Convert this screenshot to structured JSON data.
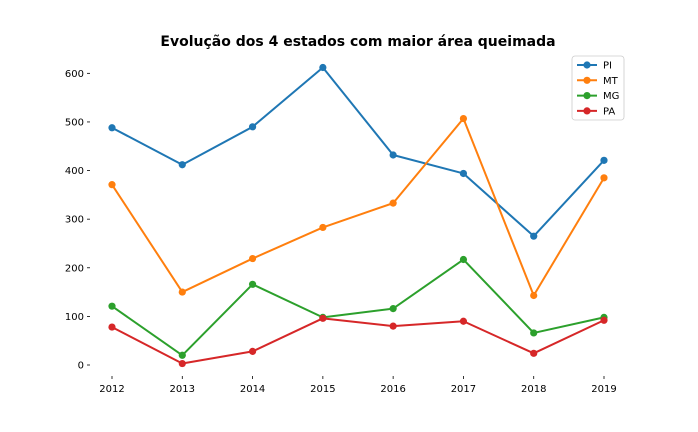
{
  "chart_data": {
    "type": "line",
    "title": "Evolução dos 4 estados com maior área queimada",
    "xlabel": "",
    "ylabel": "",
    "x": [
      2012,
      2013,
      2014,
      2015,
      2016,
      2017,
      2018,
      2019
    ],
    "x_tick_labels": [
      "2012",
      "2013",
      "2014",
      "2015",
      "2016",
      "2017",
      "2018",
      "2019"
    ],
    "y_ticks": [
      0,
      100,
      200,
      300,
      400,
      500,
      600
    ],
    "y_tick_labels": [
      "0",
      "100",
      "200",
      "300",
      "400",
      "500",
      "600"
    ],
    "ylim": [
      -15,
      645
    ],
    "grid": false,
    "legend_position": "top-right",
    "series": [
      {
        "name": "PI",
        "color": "#1f77b4",
        "values": [
          488,
          412,
          490,
          612,
          432,
          394,
          265,
          421
        ]
      },
      {
        "name": "MT",
        "color": "#ff7f0e",
        "values": [
          371,
          150,
          219,
          283,
          333,
          507,
          143,
          385
        ]
      },
      {
        "name": "MG",
        "color": "#2ca02c",
        "values": [
          121,
          20,
          166,
          98,
          116,
          217,
          66,
          98
        ]
      },
      {
        "name": "PA",
        "color": "#d62728",
        "values": [
          78,
          3,
          28,
          96,
          80,
          90,
          24,
          92
        ]
      }
    ]
  }
}
